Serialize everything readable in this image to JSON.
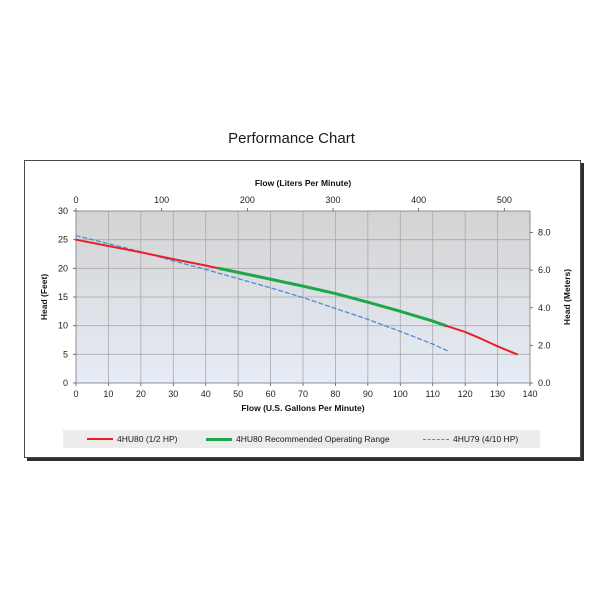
{
  "page": {
    "title": "Performance Chart"
  },
  "chart_data": {
    "type": "line",
    "xlabel": "Flow (U.S. Gallons Per Minute)",
    "x2label": "Flow (Liters Per Minute)",
    "ylabel": "Head (Feet)",
    "y2label": "Head (Meters)",
    "xlim": [
      0,
      140
    ],
    "x_ticks": [
      0,
      10,
      20,
      30,
      40,
      50,
      60,
      70,
      80,
      90,
      100,
      110,
      120,
      130,
      140
    ],
    "ylim": [
      0,
      30
    ],
    "y_ticks": [
      0,
      5,
      10,
      15,
      20,
      25,
      30
    ],
    "x2lim": [
      0,
      529.96
    ],
    "x2_ticks": [
      0,
      100,
      200,
      300,
      400,
      500
    ],
    "y2lim": [
      0,
      9.144
    ],
    "y2_ticks": [
      "0.0",
      "2.0",
      "4.0",
      "6.0",
      "8.0"
    ],
    "grid": true,
    "legend_position": "bottom",
    "series": [
      {
        "name": "4HU80 (1/2 HP)",
        "color": "#e8202a",
        "style": "solid",
        "x": [
          0,
          10,
          20,
          30,
          40,
          44
        ],
        "y": [
          25.0,
          23.9,
          22.8,
          21.6,
          20.5,
          20.0
        ]
      },
      {
        "name": "4HU80 Recommended Operating Range",
        "color": "#1fa64a",
        "style": "solid",
        "x": [
          44,
          50,
          60,
          70,
          80,
          90,
          100,
          110,
          114
        ],
        "y": [
          20.0,
          19.3,
          18.1,
          16.9,
          15.6,
          14.1,
          12.5,
          10.8,
          10.0
        ]
      },
      {
        "name": "4HU80 (1/2 HP)",
        "color": "#e8202a",
        "style": "solid",
        "x": [
          114,
          120,
          125,
          130,
          136
        ],
        "y": [
          10.0,
          8.9,
          7.7,
          6.4,
          5.0
        ]
      },
      {
        "name": "4HU79 (4/10 HP)",
        "color": "#5588d8",
        "style": "dashed",
        "x": [
          0,
          10,
          20,
          30,
          40,
          50,
          60,
          70,
          80,
          90,
          100,
          110,
          115
        ],
        "y": [
          25.7,
          24.3,
          22.9,
          21.3,
          19.8,
          18.2,
          16.6,
          14.9,
          13.0,
          11.1,
          9.0,
          6.8,
          5.5
        ]
      }
    ],
    "legend": [
      {
        "label": "4HU80 (1/2 HP)",
        "color": "#e8202a",
        "style": "solid"
      },
      {
        "label": "4HU80 Recommended Operating Range",
        "color": "#1fa64a",
        "style": "solid"
      },
      {
        "label": "4HU79 (4/10 HP)",
        "color": "#5588d8",
        "style": "dashed"
      }
    ]
  }
}
